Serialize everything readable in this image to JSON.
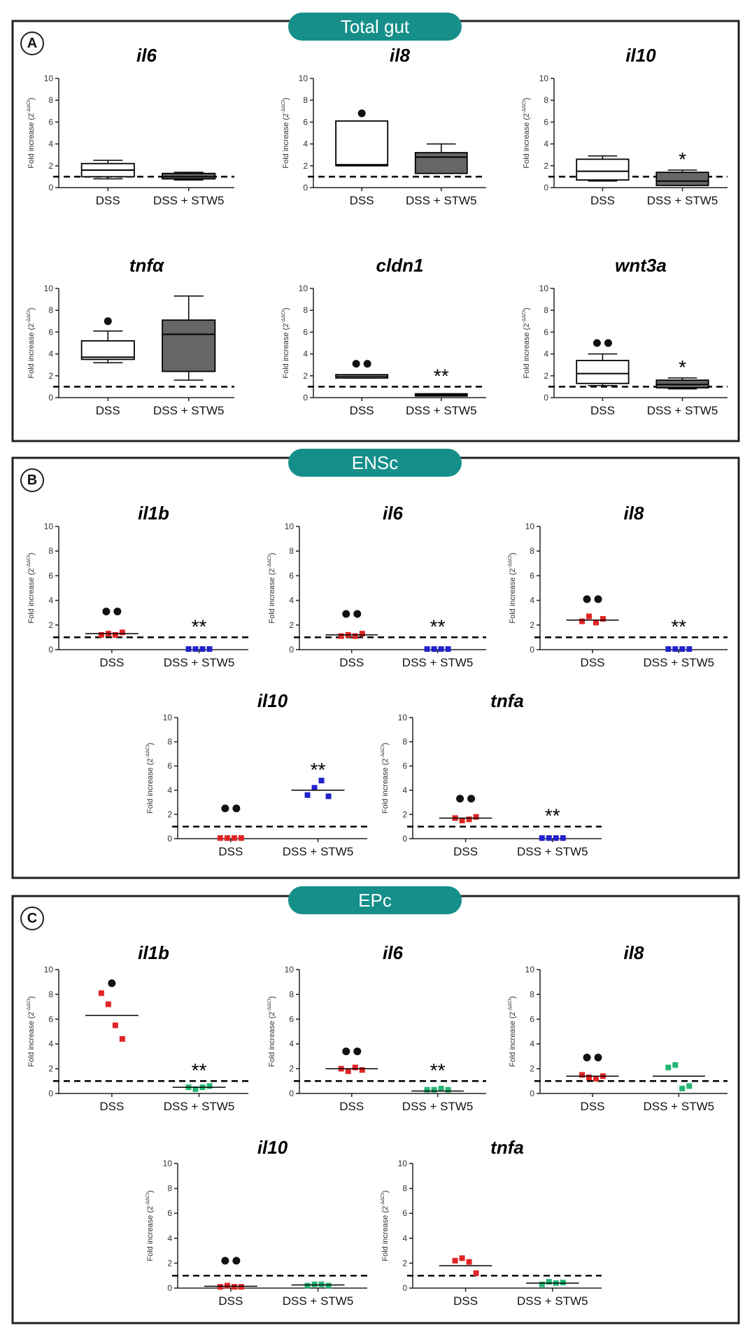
{
  "colors": {
    "teal": "#168f8a",
    "frame": "#222222",
    "ens_dss": "#e02424",
    "ens_stw5": "#2222cc",
    "ep_dss": "#e02424",
    "ep_stw5": "#22b573",
    "outlier": "#111111",
    "box_dss": "#ffffff",
    "box_stw5": "#666666"
  },
  "sections": [
    {
      "key": "A",
      "title": "Total gut"
    },
    {
      "key": "B",
      "title": "ENSc"
    },
    {
      "key": "C",
      "title": "EPc"
    }
  ],
  "y_axis_label": {
    "main": "Fold increase (2",
    "exponent": "-ΔΔCt",
    "close": ")"
  },
  "chart_data": [
    {
      "id": "A1",
      "section": "A",
      "type": "box",
      "title": "il6",
      "categories": [
        "DSS",
        "DSS + STW5"
      ],
      "ylim": [
        0,
        10
      ],
      "yticks": [
        0,
        2,
        4,
        6,
        8,
        10
      ],
      "reference_line": 1,
      "boxes": [
        {
          "min": 0.8,
          "q1": 1.0,
          "median": 1.6,
          "q3": 2.2,
          "max": 2.5
        },
        {
          "min": 0.7,
          "q1": 0.8,
          "median": 1.0,
          "q3": 1.3,
          "max": 1.4
        }
      ],
      "outliers": [
        [],
        []
      ],
      "significance": [
        "",
        ""
      ]
    },
    {
      "id": "A2",
      "section": "A",
      "type": "box",
      "title": "il8",
      "categories": [
        "DSS",
        "DSS + STW5"
      ],
      "ylim": [
        0,
        10
      ],
      "yticks": [
        0,
        2,
        4,
        6,
        8,
        10
      ],
      "reference_line": 1,
      "boxes": [
        {
          "min": 2.0,
          "q1": 2.0,
          "median": 2.1,
          "q3": 6.1,
          "max": 6.1
        },
        {
          "min": 1.3,
          "q1": 1.3,
          "median": 2.8,
          "q3": 3.2,
          "max": 4.0
        }
      ],
      "outliers": [
        [
          6.8
        ],
        []
      ],
      "significance": [
        "",
        ""
      ]
    },
    {
      "id": "A3",
      "section": "A",
      "type": "box",
      "title": "il10",
      "categories": [
        "DSS",
        "DSS + STW5"
      ],
      "ylim": [
        0,
        10
      ],
      "yticks": [
        0,
        2,
        4,
        6,
        8,
        10
      ],
      "reference_line": 1,
      "boxes": [
        {
          "min": 0.6,
          "q1": 0.7,
          "median": 1.5,
          "q3": 2.6,
          "max": 2.9
        },
        {
          "min": 0.2,
          "q1": 0.2,
          "median": 0.6,
          "q3": 1.4,
          "max": 1.6
        }
      ],
      "outliers": [
        [],
        []
      ],
      "significance": [
        "",
        "*"
      ]
    },
    {
      "id": "A4",
      "section": "A",
      "type": "box",
      "title": "tnfα",
      "categories": [
        "DSS",
        "DSS + STW5"
      ],
      "ylim": [
        0,
        10
      ],
      "yticks": [
        0,
        2,
        4,
        6,
        8,
        10
      ],
      "reference_line": 1,
      "boxes": [
        {
          "min": 3.2,
          "q1": 3.5,
          "median": 3.7,
          "q3": 5.2,
          "max": 6.1
        },
        {
          "min": 1.6,
          "q1": 2.4,
          "median": 5.8,
          "q3": 7.1,
          "max": 9.3
        }
      ],
      "outliers": [
        [
          7.0
        ],
        []
      ],
      "significance": [
        "",
        ""
      ]
    },
    {
      "id": "A5",
      "section": "A",
      "type": "box",
      "title": "cldn1",
      "categories": [
        "DSS",
        "DSS + STW5"
      ],
      "ylim": [
        0,
        10
      ],
      "yticks": [
        0,
        2,
        4,
        6,
        8,
        10
      ],
      "reference_line": 1,
      "boxes": [
        {
          "min": 1.8,
          "q1": 1.8,
          "median": 1.95,
          "q3": 2.1,
          "max": 2.1
        },
        {
          "min": 0.15,
          "q1": 0.15,
          "median": 0.25,
          "q3": 0.35,
          "max": 0.35
        }
      ],
      "outliers": [
        [
          3.1,
          3.1
        ],
        []
      ],
      "significance": [
        "",
        "**"
      ]
    },
    {
      "id": "A6",
      "section": "A",
      "type": "box",
      "title": "wnt3a",
      "categories": [
        "DSS",
        "DSS + STW5"
      ],
      "ylim": [
        0,
        10
      ],
      "yticks": [
        0,
        2,
        4,
        6,
        8,
        10
      ],
      "reference_line": 1,
      "boxes": [
        {
          "min": 1.1,
          "q1": 1.3,
          "median": 2.2,
          "q3": 3.4,
          "max": 4.0
        },
        {
          "min": 0.8,
          "q1": 0.9,
          "median": 1.2,
          "q3": 1.6,
          "max": 1.8
        }
      ],
      "outliers": [
        [
          5.0,
          5.0
        ],
        []
      ],
      "significance": [
        "",
        "*"
      ]
    },
    {
      "id": "B1",
      "section": "B",
      "type": "scatter",
      "title": "il1b",
      "categories": [
        "DSS",
        "DSS + STW5"
      ],
      "ylim": [
        0,
        10
      ],
      "yticks": [
        0,
        2,
        4,
        6,
        8,
        10
      ],
      "reference_line": 1,
      "points": [
        [
          1.2,
          1.3,
          1.2,
          1.4
        ],
        [
          0.05,
          0.05,
          0.05,
          0.05
        ]
      ],
      "means": [
        1.3,
        null
      ],
      "outliers": [
        [
          3.1,
          3.1
        ],
        []
      ],
      "significance": [
        "",
        "**"
      ]
    },
    {
      "id": "B2",
      "section": "B",
      "type": "scatter",
      "title": "il6",
      "categories": [
        "DSS",
        "DSS + STW5"
      ],
      "ylim": [
        0,
        10
      ],
      "yticks": [
        0,
        2,
        4,
        6,
        8,
        10
      ],
      "reference_line": 1,
      "points": [
        [
          1.1,
          1.2,
          1.1,
          1.3
        ],
        [
          0.05,
          0.05,
          0.05,
          0.05
        ]
      ],
      "means": [
        1.2,
        null
      ],
      "outliers": [
        [
          2.9,
          2.9
        ],
        []
      ],
      "significance": [
        "",
        "**"
      ]
    },
    {
      "id": "B3",
      "section": "B",
      "type": "scatter",
      "title": "il8",
      "categories": [
        "DSS",
        "DSS + STW5"
      ],
      "ylim": [
        0,
        10
      ],
      "yticks": [
        0,
        2,
        4,
        6,
        8,
        10
      ],
      "reference_line": 1,
      "points": [
        [
          2.3,
          2.7,
          2.2,
          2.5
        ],
        [
          0.05,
          0.05,
          0.05,
          0.05
        ]
      ],
      "means": [
        2.4,
        null
      ],
      "outliers": [
        [
          4.1,
          4.1
        ],
        []
      ],
      "significance": [
        "",
        "**"
      ]
    },
    {
      "id": "B4",
      "section": "B",
      "type": "scatter",
      "title": "il10",
      "categories": [
        "DSS",
        "DSS + STW5"
      ],
      "ylim": [
        0,
        10
      ],
      "yticks": [
        0,
        2,
        4,
        6,
        8,
        10
      ],
      "reference_line": 1,
      "points": [
        [
          0.05,
          0.05,
          0.05,
          0.05
        ],
        [
          3.6,
          4.2,
          4.8,
          3.5
        ]
      ],
      "means": [
        null,
        4.0
      ],
      "outliers": [
        [
          2.5,
          2.5
        ],
        []
      ],
      "significance": [
        "",
        "**"
      ]
    },
    {
      "id": "B5",
      "section": "B",
      "type": "scatter",
      "title": "tnfa",
      "categories": [
        "DSS",
        "DSS + STW5"
      ],
      "ylim": [
        0,
        10
      ],
      "yticks": [
        0,
        2,
        4,
        6,
        8,
        10
      ],
      "reference_line": 1,
      "points": [
        [
          1.7,
          1.5,
          1.6,
          1.8
        ],
        [
          0.05,
          0.05,
          0.05,
          0.05
        ]
      ],
      "means": [
        1.7,
        null
      ],
      "outliers": [
        [
          3.3,
          3.3
        ],
        []
      ],
      "significance": [
        "",
        "**"
      ]
    },
    {
      "id": "C1",
      "section": "C",
      "type": "scatter",
      "title": "il1b",
      "categories": [
        "DSS",
        "DSS + STW5"
      ],
      "ylim": [
        0,
        10
      ],
      "yticks": [
        0,
        2,
        4,
        6,
        8,
        10
      ],
      "reference_line": 1,
      "points": [
        [
          8.1,
          7.2,
          5.5,
          4.4
        ],
        [
          0.5,
          0.35,
          0.5,
          0.6
        ]
      ],
      "means": [
        6.3,
        0.5
      ],
      "outliers": [
        [
          8.9
        ],
        []
      ],
      "significance": [
        "",
        "**"
      ]
    },
    {
      "id": "C2",
      "section": "C",
      "type": "scatter",
      "title": "il6",
      "categories": [
        "DSS",
        "DSS + STW5"
      ],
      "ylim": [
        0,
        10
      ],
      "yticks": [
        0,
        2,
        4,
        6,
        8,
        10
      ],
      "reference_line": 1,
      "points": [
        [
          2.0,
          1.8,
          2.1,
          1.9
        ],
        [
          0.3,
          0.3,
          0.4,
          0.3
        ]
      ],
      "means": [
        2.0,
        0.2
      ],
      "outliers": [
        [
          3.4,
          3.4
        ],
        []
      ],
      "significance": [
        "",
        "**"
      ]
    },
    {
      "id": "C3",
      "section": "C",
      "type": "scatter",
      "title": "il8",
      "categories": [
        "DSS",
        "DSS + STW5"
      ],
      "ylim": [
        0,
        10
      ],
      "yticks": [
        0,
        2,
        4,
        6,
        8,
        10
      ],
      "reference_line": 1,
      "points": [
        [
          1.5,
          1.3,
          1.2,
          1.4
        ],
        [
          2.1,
          2.3,
          0.4,
          0.6
        ]
      ],
      "means": [
        1.4,
        1.4
      ],
      "outliers": [
        [
          2.9,
          2.9
        ],
        []
      ],
      "significance": [
        "",
        ""
      ]
    },
    {
      "id": "C4",
      "section": "C",
      "type": "scatter",
      "title": "il10",
      "categories": [
        "DSS",
        "DSS + STW5"
      ],
      "ylim": [
        0,
        10
      ],
      "yticks": [
        0,
        2,
        4,
        6,
        8,
        10
      ],
      "reference_line": 1,
      "points": [
        [
          0.1,
          0.2,
          0.1,
          0.1
        ],
        [
          0.2,
          0.3,
          0.3,
          0.2
        ]
      ],
      "means": [
        0.15,
        0.25
      ],
      "outliers": [
        [
          2.2,
          2.2
        ],
        []
      ],
      "significance": [
        "",
        ""
      ]
    },
    {
      "id": "C5",
      "section": "C",
      "type": "scatter",
      "title": "tnfa",
      "categories": [
        "DSS",
        "DSS + STW5"
      ],
      "ylim": [
        0,
        10
      ],
      "yticks": [
        0,
        2,
        4,
        6,
        8,
        10
      ],
      "reference_line": 1,
      "points": [
        [
          2.2,
          2.4,
          2.1,
          1.2
        ],
        [
          0.3,
          0.5,
          0.4,
          0.45
        ]
      ],
      "means": [
        1.8,
        0.4
      ],
      "outliers": [
        [],
        []
      ],
      "significance": [
        "",
        ""
      ]
    }
  ]
}
